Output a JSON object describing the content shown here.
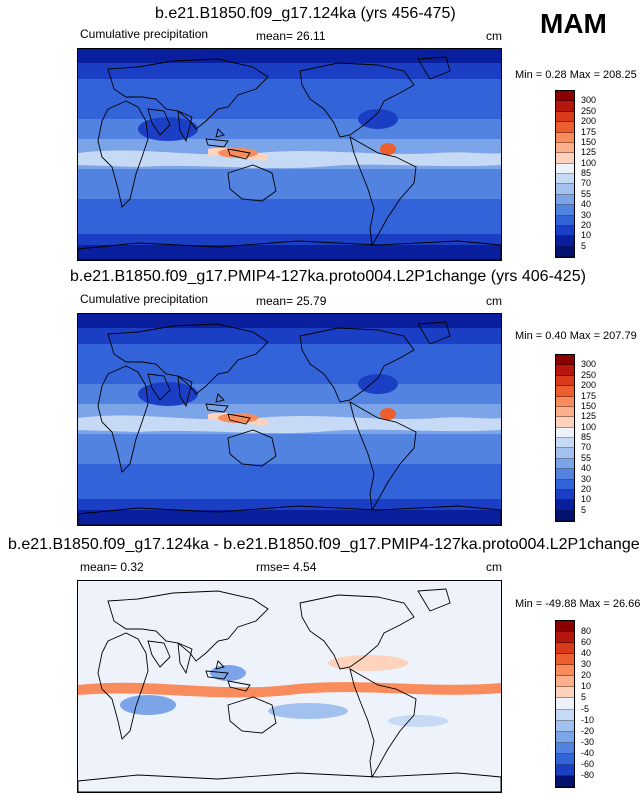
{
  "season": "MAM",
  "panels": [
    {
      "title": "b.e21.B1850.f09_g17.124ka (yrs 456-475)",
      "left_label": "Cumulative precipitation",
      "mean_label": "mean=",
      "mean_value": "26.11",
      "units": "cm",
      "minmax": "Min =   0.28 Max = 208.25",
      "levels": [
        "300",
        "250",
        "200",
        "175",
        "150",
        "125",
        "100",
        "85",
        "70",
        "55",
        "40",
        "30",
        "20",
        "10",
        "5"
      ],
      "colors": [
        "#8b0000",
        "#b5160d",
        "#d83a1a",
        "#ec5e2e",
        "#f98c5c",
        "#fbb08b",
        "#fdd3bd",
        "#eef3fb",
        "#c7daf5",
        "#a3c1ef",
        "#7ca4e8",
        "#5383e0",
        "#3363d8",
        "#1b3fc4",
        "#0a1f9e",
        "#03126e"
      ],
      "map_kind": "precip"
    },
    {
      "title": "b.e21.B1850.f09_g17.PMIP4-127ka.proto004.L2P1change (yrs 406-425)",
      "left_label": "Cumulative precipitation",
      "mean_label": "mean=",
      "mean_value": "25.79",
      "units": "cm",
      "minmax": "Min =   0.40 Max = 207.79",
      "levels": [
        "300",
        "250",
        "200",
        "175",
        "150",
        "125",
        "100",
        "85",
        "70",
        "55",
        "40",
        "30",
        "20",
        "10",
        "5"
      ],
      "colors": [
        "#8b0000",
        "#b5160d",
        "#d83a1a",
        "#ec5e2e",
        "#f98c5c",
        "#fbb08b",
        "#fdd3bd",
        "#eef3fb",
        "#c7daf5",
        "#a3c1ef",
        "#7ca4e8",
        "#5383e0",
        "#3363d8",
        "#1b3fc4",
        "#0a1f9e",
        "#03126e"
      ],
      "map_kind": "precip"
    },
    {
      "title": "b.e21.B1850.f09_g17.124ka - b.e21.B1850.f09_g17.PMIP4-127ka.proto004.L2P1change",
      "left_label": "mean=   0.32",
      "mean_label": "rmse=",
      "mean_value": "4.54",
      "units": "cm",
      "minmax": "Min = -49.88 Max =  26.66",
      "levels": [
        "80",
        "60",
        "40",
        "30",
        "20",
        "10",
        "5",
        "-5",
        "-10",
        "-20",
        "-30",
        "-40",
        "-60",
        "-80"
      ],
      "colors": [
        "#8b0000",
        "#b5160d",
        "#d83a1a",
        "#ec5e2e",
        "#f98c5c",
        "#fbb08b",
        "#fdd3bd",
        "#eef3fb",
        "#c7daf5",
        "#a3c1ef",
        "#7ca4e8",
        "#5383e0",
        "#3363d8",
        "#1b3fc4",
        "#03126e"
      ],
      "map_kind": "diff"
    }
  ]
}
